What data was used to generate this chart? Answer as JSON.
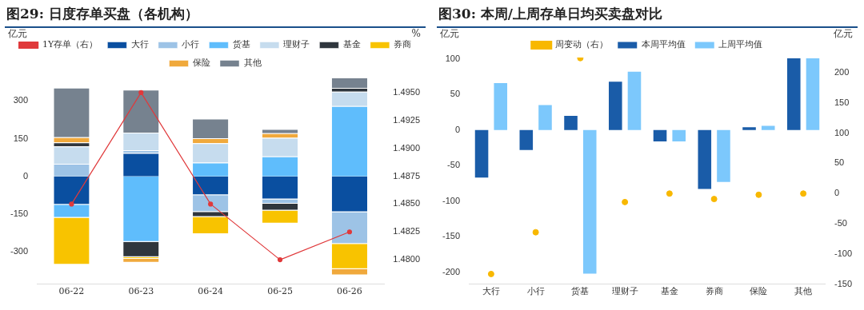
{
  "chart_data": [
    {
      "type": "bar",
      "title": "图29: 日度存单买盘（各机构）",
      "ylabel": "亿元",
      "y2label": "%",
      "stacked": true,
      "legend": "top",
      "grid": false,
      "categories": [
        "06-22",
        "06-23",
        "06-24",
        "06-25",
        "06-26"
      ],
      "ylim": [
        -430,
        400
      ],
      "yticks": [
        -300,
        -150,
        0,
        150,
        300
      ],
      "y2lim": [
        1.4778,
        1.4965
      ],
      "y2ticks": [
        {
          "value": 1.48,
          "label": "1.4800"
        },
        {
          "value": 1.4825,
          "label": "1.4825"
        },
        {
          "value": 1.485,
          "label": "1.4850"
        },
        {
          "value": 1.4875,
          "label": "1.4875"
        },
        {
          "value": 1.49,
          "label": "1.4900"
        },
        {
          "value": 1.4925,
          "label": "1.4925"
        },
        {
          "value": 1.495,
          "label": "1.4950"
        }
      ],
      "series": [
        {
          "name": "大行",
          "color": "#0a4fa0",
          "values": [
            -113,
            93,
            -75,
            -92,
            -143
          ]
        },
        {
          "name": "小行",
          "color": "#9dc3e6",
          "values": [
            50,
            11,
            -67,
            -17,
            -126
          ]
        },
        {
          "name": "货基",
          "color": "#5fbdfc",
          "values": [
            -52,
            -261,
            55,
            79,
            280
          ]
        },
        {
          "name": "理财子",
          "color": "#c6dcee",
          "values": [
            69,
            70,
            77,
            74,
            57
          ]
        },
        {
          "name": "基金",
          "color": "#2f363d",
          "values": [
            16,
            -61,
            -20,
            -27,
            15
          ]
        },
        {
          "name": "券商",
          "color": "#f8c300",
          "values": [
            -187,
            -7,
            -68,
            -52,
            -100
          ]
        },
        {
          "name": "保险",
          "color": "#f0a93c",
          "values": [
            21,
            -15,
            20,
            19,
            -25
          ]
        },
        {
          "name": "其他",
          "color": "#76828f",
          "values": [
            197,
            171,
            78,
            16,
            42
          ]
        },
        {
          "name": "1Y存单（右）",
          "type": "line",
          "axis": "y2",
          "marker": "circle",
          "color": "#e0393b",
          "values": [
            1.485,
            1.495,
            1.485,
            1.48,
            1.4825
          ]
        }
      ]
    },
    {
      "type": "bar",
      "title": "图30: 本周/上周存单日均买卖盘对比",
      "ylabel": "亿元",
      "y2label": "亿元",
      "legend": "top",
      "grid": false,
      "categories": [
        "大行",
        "小行",
        "货基",
        "理财子",
        "基金",
        "券商",
        "保险",
        "其他"
      ],
      "ylim": [
        -217,
        102
      ],
      "yticks": [
        -200,
        -150,
        -100,
        -50,
        0,
        50,
        100
      ],
      "y2lim": [
        -150,
        225
      ],
      "y2ticks": [
        -150,
        -100,
        -50,
        0,
        50,
        100,
        150,
        200
      ],
      "series": [
        {
          "name": "本周平均值",
          "color": "#1a5ca8",
          "values": [
            -67,
            -28,
            20,
            68,
            -16,
            -83,
            4,
            101
          ]
        },
        {
          "name": "上周平均值",
          "color": "#7cc8fc",
          "values": [
            66,
            35,
            -202,
            82,
            -16,
            -73,
            6,
            101
          ]
        },
        {
          "name": "周变动（右）",
          "type": "scatter",
          "axis": "y2",
          "marker": "circle",
          "color": "#f8b800",
          "values": [
            -133,
            -64,
            224,
            -14,
            0,
            -9,
            -2,
            0
          ]
        }
      ]
    }
  ]
}
